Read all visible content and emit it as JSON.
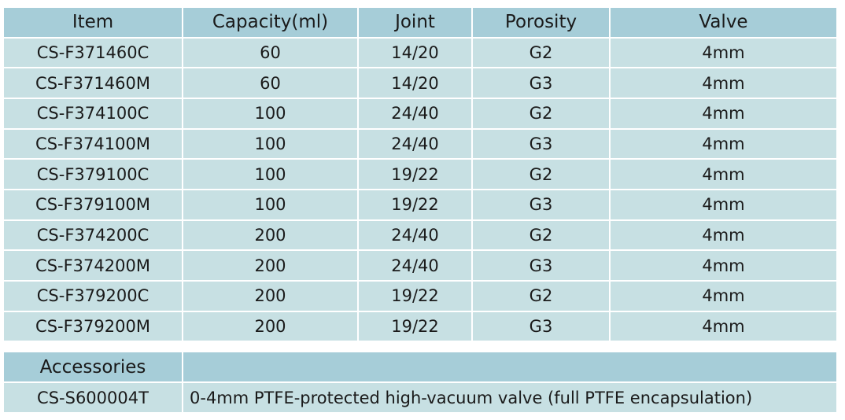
{
  "table": {
    "header": [
      "Item",
      "Capacity(ml)",
      "Joint",
      "Porosity",
      "Valve"
    ],
    "rows": [
      [
        "CS-F371460C",
        "60",
        "14/20",
        "G2",
        "4mm"
      ],
      [
        "CS-F371460M",
        "60",
        "14/20",
        "G3",
        "4mm"
      ],
      [
        "CS-F374100C",
        "100",
        "24/40",
        "G2",
        "4mm"
      ],
      [
        "CS-F374100M",
        "100",
        "24/40",
        "G3",
        "4mm"
      ],
      [
        "CS-F379100C",
        "100",
        "19/22",
        "G2",
        "4mm"
      ],
      [
        "CS-F379100M",
        "100",
        "19/22",
        "G3",
        "4mm"
      ],
      [
        "CS-F374200C",
        "200",
        "24/40",
        "G2",
        "4mm"
      ],
      [
        "CS-F374200M",
        "200",
        "24/40",
        "G3",
        "4mm"
      ],
      [
        "CS-F379200C",
        "200",
        "19/22",
        "G2",
        "4mm"
      ],
      [
        "CS-F379200M",
        "200",
        "19/22",
        "G3",
        "4mm"
      ]
    ]
  },
  "accessories": {
    "title": "Accessories",
    "rows": [
      [
        "CS-S600004T",
        "0-4mm PTFE-protected high-vacuum valve (full PTFE encapsulation)"
      ]
    ]
  }
}
